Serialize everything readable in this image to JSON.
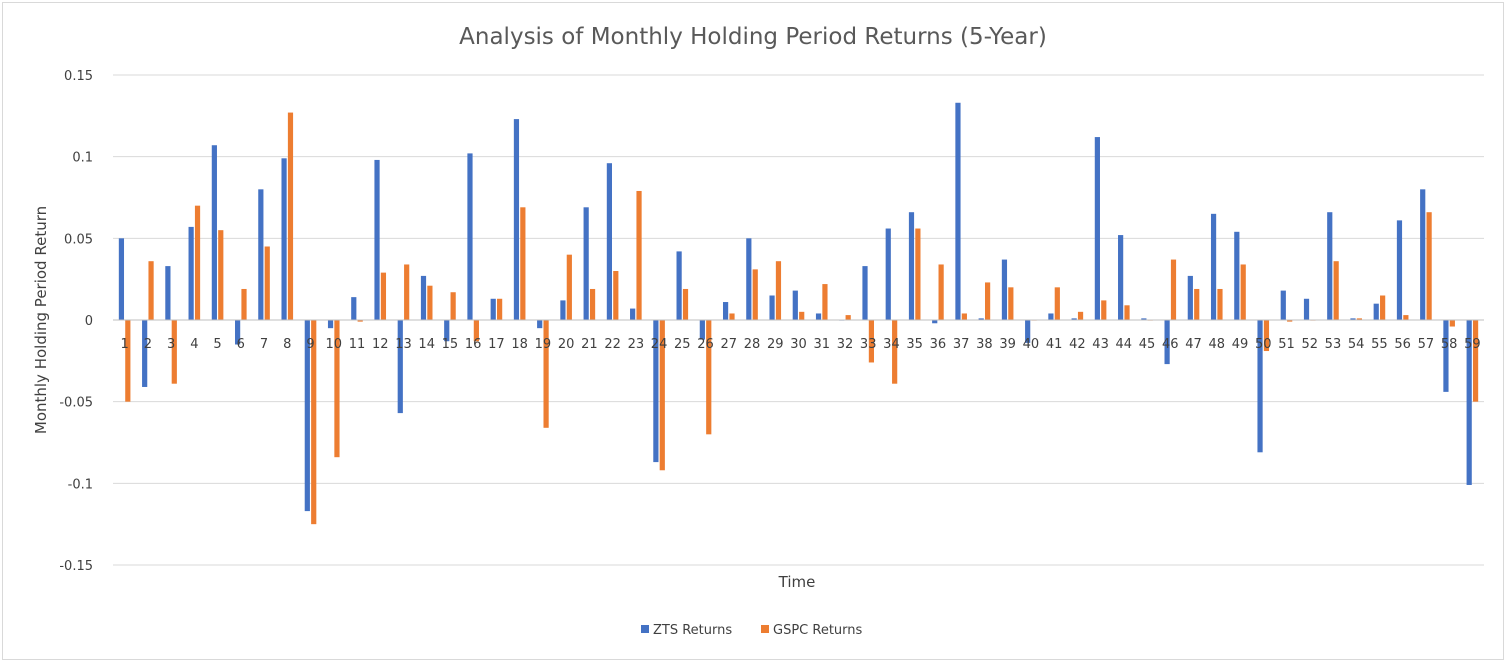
{
  "chart_data": {
    "type": "bar",
    "title": "Analysis of Monthly Holding Period Returns (5-Year)",
    "xlabel": "Time",
    "ylabel": "Monthly Holding Period Return",
    "ylim": [
      -0.15,
      0.15
    ],
    "yticks": [
      0.15,
      0.1,
      0.05,
      0,
      -0.05,
      -0.1,
      -0.15
    ],
    "ytick_labels": [
      "0.15",
      "0.1",
      "0.05",
      "0",
      "-0.05",
      "-0.1",
      "-0.15"
    ],
    "categories": [
      "1",
      "2",
      "3",
      "4",
      "5",
      "6",
      "7",
      "8",
      "9",
      "10",
      "11",
      "12",
      "13",
      "14",
      "15",
      "16",
      "17",
      "18",
      "19",
      "20",
      "21",
      "22",
      "23",
      "24",
      "25",
      "26",
      "27",
      "28",
      "29",
      "30",
      "31",
      "32",
      "33",
      "34",
      "35",
      "36",
      "37",
      "38",
      "39",
      "40",
      "41",
      "42",
      "43",
      "44",
      "45",
      "46",
      "47",
      "48",
      "49",
      "50",
      "51",
      "52",
      "53",
      "54",
      "55",
      "56",
      "57",
      "58",
      "59"
    ],
    "grid": true,
    "legend_position": "bottom",
    "series": [
      {
        "name": "ZTS Returns",
        "color": "#4472c4",
        "values": [
          0.05,
          -0.041,
          0.033,
          0.057,
          0.107,
          -0.015,
          0.08,
          0.099,
          -0.117,
          -0.005,
          0.014,
          0.098,
          -0.057,
          0.027,
          -0.013,
          0.102,
          0.013,
          0.123,
          -0.005,
          0.012,
          0.069,
          0.096,
          0.007,
          -0.087,
          0.042,
          -0.012,
          0.011,
          0.05,
          0.015,
          0.018,
          0.004,
          0.0,
          0.033,
          0.056,
          0.066,
          -0.002,
          0.133,
          0.001,
          0.037,
          -0.014,
          0.004,
          0.001,
          0.112,
          0.052,
          0.001,
          -0.027,
          0.027,
          0.065,
          0.054,
          -0.081,
          0.018,
          0.013,
          0.066,
          0.001,
          0.01,
          0.061,
          0.08,
          -0.044,
          -0.101
        ]
      },
      {
        "name": "GSPC Returns",
        "color": "#ed7d31",
        "values": [
          -0.05,
          0.036,
          -0.039,
          0.07,
          0.055,
          0.019,
          0.045,
          0.127,
          -0.125,
          -0.084,
          -0.001,
          0.029,
          0.034,
          0.021,
          0.017,
          -0.013,
          0.013,
          0.069,
          -0.066,
          0.04,
          0.019,
          0.03,
          0.079,
          -0.092,
          0.019,
          -0.07,
          0.004,
          0.031,
          0.036,
          0.005,
          0.022,
          0.003,
          -0.026,
          -0.039,
          0.056,
          0.034,
          0.004,
          0.023,
          0.02,
          0.0,
          0.02,
          0.005,
          0.012,
          0.009,
          0.0,
          0.037,
          0.019,
          0.019,
          0.034,
          -0.019,
          -0.001,
          0.0,
          0.036,
          0.001,
          0.015,
          0.003,
          0.066,
          -0.004,
          -0.05
        ]
      }
    ]
  }
}
